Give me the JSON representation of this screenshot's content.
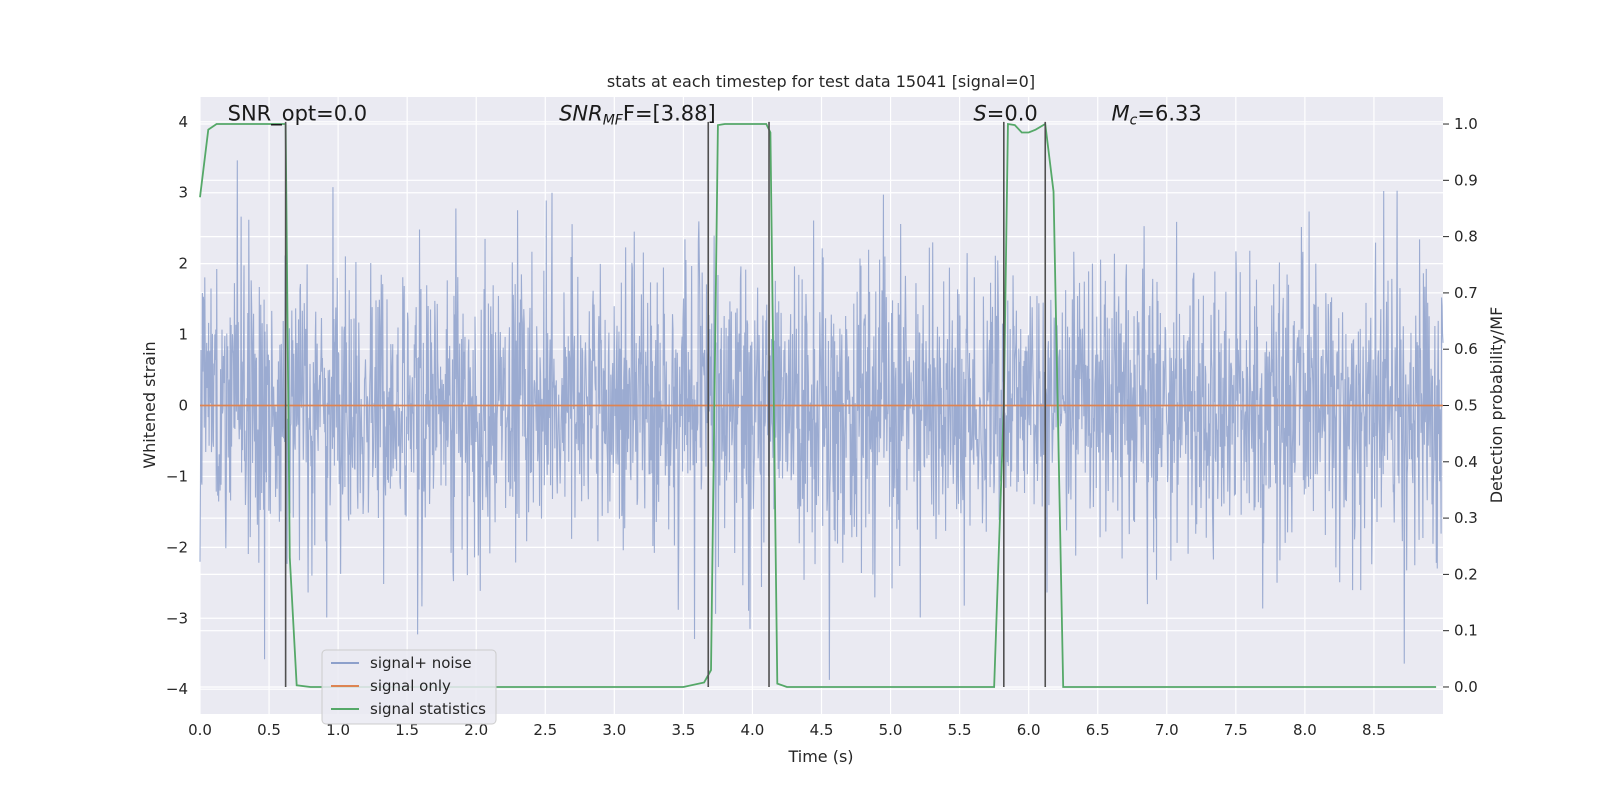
{
  "chart_data": {
    "type": "line",
    "title": "stats at each timestep for test data 15041 [signal=0]",
    "xlabel": "Time (s)",
    "ylabel": "Whitened strain",
    "y2label": "Detection probability/MF",
    "xlim": [
      0.0,
      9.0
    ],
    "ylim": [
      -4.35,
      4.35
    ],
    "y2lim": [
      -0.048,
      1.048
    ],
    "xticks": [
      0.0,
      0.5,
      1.0,
      1.5,
      2.0,
      2.5,
      3.0,
      3.5,
      4.0,
      4.5,
      5.0,
      5.5,
      6.0,
      6.5,
      7.0,
      7.5,
      8.0,
      8.5
    ],
    "xtick_labels": [
      "0.0",
      "0.5",
      "1.0",
      "1.5",
      "2.0",
      "2.5",
      "3.0",
      "3.5",
      "4.0",
      "4.5",
      "5.0",
      "5.5",
      "6.0",
      "6.5",
      "7.0",
      "7.5",
      "8.0",
      "8.5"
    ],
    "yticks": [
      4,
      3,
      2,
      1,
      0,
      -1,
      -2,
      -3,
      -4
    ],
    "ytick_labels": [
      "4",
      "3",
      "2",
      "1",
      "0",
      "−1",
      "−2",
      "−3",
      "−4"
    ],
    "y2ticks": [
      1.0,
      0.9,
      0.8,
      0.7,
      0.6,
      0.5,
      0.4,
      0.3,
      0.2,
      0.1,
      0.0
    ],
    "y2tick_labels": [
      "1.0",
      "0.9",
      "0.8",
      "0.7",
      "0.6",
      "0.5",
      "0.4",
      "0.3",
      "0.2",
      "0.1",
      "0.0"
    ],
    "grid": true,
    "legend_position": "lower-left",
    "noise": {
      "name": "signal+ noise",
      "color": "#8da0cb",
      "t_start": 0.0,
      "t_end": 9.0,
      "n_samples": 2600,
      "sigma": 1.0,
      "seed": 15041
    },
    "series": [
      {
        "name": "signal only",
        "color": "#dd8452",
        "x": [
          0.0,
          9.0
        ],
        "y": [
          0.0,
          0.0
        ]
      },
      {
        "name": "signal statistics",
        "color": "#55a868",
        "axis": "y2",
        "x": [
          0.0,
          0.06,
          0.12,
          0.2,
          0.4,
          0.6,
          0.62,
          0.65,
          0.7,
          0.8,
          1.0,
          1.5,
          2.0,
          2.5,
          3.0,
          3.5,
          3.65,
          3.7,
          3.75,
          3.8,
          3.9,
          4.0,
          4.1,
          4.13,
          4.18,
          4.25,
          4.5,
          5.0,
          5.5,
          5.75,
          5.82,
          5.85,
          5.9,
          5.95,
          6.0,
          6.05,
          6.12,
          6.18,
          6.25,
          6.3,
          6.5,
          7.0,
          7.5,
          8.0,
          8.5,
          8.95
        ],
        "y": [
          0.87,
          0.99,
          1.0,
          1.0,
          1.0,
          1.0,
          1.0,
          0.23,
          0.003,
          0.0,
          0.0,
          0.0,
          0.0,
          0.0,
          0.0,
          0.0,
          0.008,
          0.03,
          0.998,
          1.0,
          1.0,
          1.0,
          1.0,
          0.985,
          0.006,
          0.0,
          0.0,
          0.0,
          0.0,
          0.0,
          0.5,
          1.0,
          0.998,
          0.985,
          0.985,
          0.99,
          1.0,
          0.88,
          0.0,
          0.0,
          0.0,
          0.0,
          0.0,
          0.0,
          0.0,
          0.0
        ]
      }
    ],
    "vlines": [
      {
        "x": 0.62,
        "y_from": -3.97,
        "y_to": 4.0
      },
      {
        "x": 3.68,
        "y_from": -3.97,
        "y_to": 4.0
      },
      {
        "x": 4.12,
        "y_from": -3.97,
        "y_to": 4.0
      },
      {
        "x": 5.82,
        "y_from": -3.97,
        "y_to": 4.0
      },
      {
        "x": 6.12,
        "y_from": -3.97,
        "y_to": 4.0
      }
    ],
    "vline_color": "#505050",
    "annotations": [
      {
        "id": "snr-opt",
        "text": "SNR_opt=0.0",
        "x": 0.2,
        "y": 4.02
      },
      {
        "id": "snr-mf",
        "x": 2.6,
        "y": 4.02,
        "parts": [
          [
            "SNR",
            "it"
          ],
          [
            "MF",
            "it-sub"
          ],
          [
            "F=[3.88]",
            "normal"
          ]
        ]
      },
      {
        "id": "s-value",
        "x": 5.6,
        "y": 4.02,
        "parts": [
          [
            "S",
            "it"
          ],
          [
            "=0.0",
            "normal"
          ]
        ]
      },
      {
        "id": "mc-value",
        "x": 6.6,
        "y": 4.02,
        "parts": [
          [
            "M",
            "it"
          ],
          [
            "c",
            "it-sub"
          ],
          [
            "=6.33",
            "normal"
          ]
        ]
      }
    ],
    "colors": {
      "plot_background": "#eaeaf2",
      "grid": "#ffffff",
      "text": "#262626"
    }
  }
}
